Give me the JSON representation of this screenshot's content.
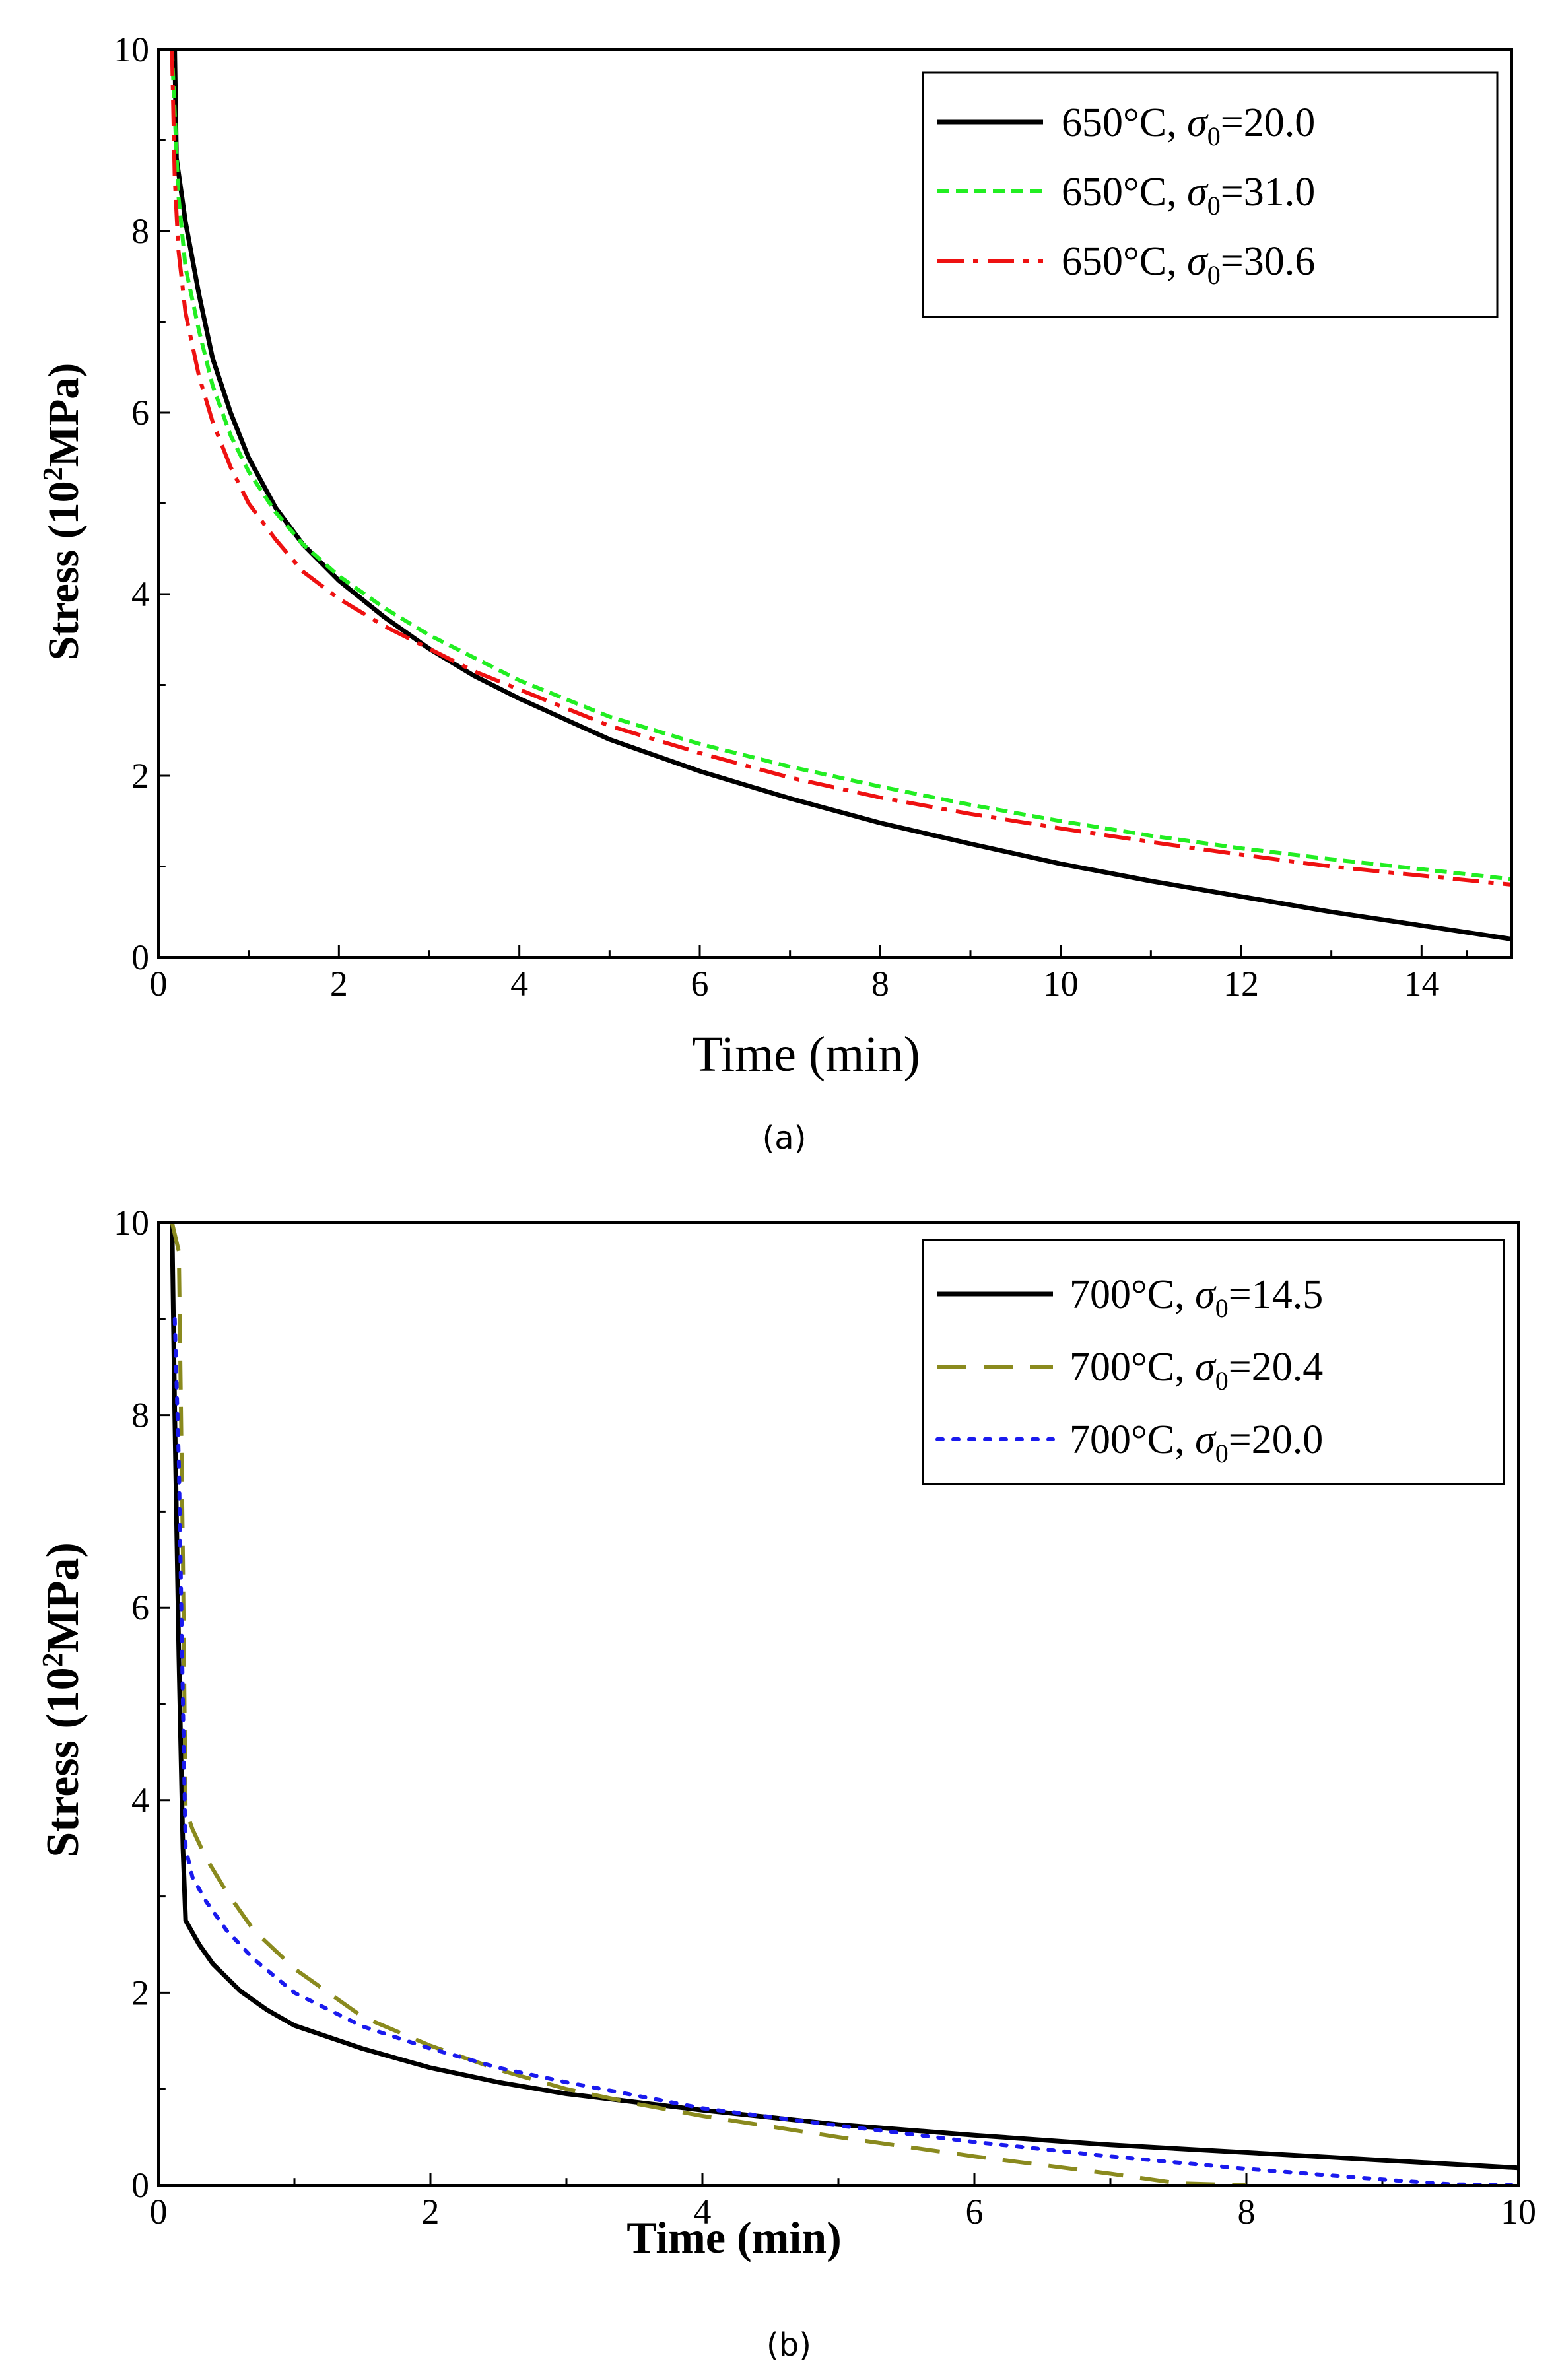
{
  "chart_data": [
    {
      "type": "line",
      "panel_caption": "(a)",
      "xlabel": "Time (min)",
      "ylabel": "Stress (10",
      "ylabel_sup": "2",
      "ylabel_end": "MPa)",
      "xlim": [
        0,
        15
      ],
      "ylim": [
        0,
        10
      ],
      "xticks": [
        "0",
        "2",
        "4",
        "6",
        "8",
        "10",
        "12",
        "14"
      ],
      "xtick_values": [
        0,
        2,
        4,
        6,
        8,
        10,
        12,
        14
      ],
      "yticks": [
        "0",
        "2",
        "4",
        "6",
        "8",
        "10"
      ],
      "ytick_values": [
        0,
        2,
        4,
        6,
        8,
        10
      ],
      "legend_position": "top-right",
      "series": [
        {
          "name": "650°C, σ0=20.0",
          "legend_prefix": "650°C, ",
          "legend_sigma": "σ",
          "legend_sub": "0",
          "legend_value": "=20.0",
          "color": "#000000",
          "style": "solid",
          "x": [
            0.18,
            0.2,
            0.3,
            0.45,
            0.6,
            0.8,
            1.0,
            1.3,
            1.6,
            2.0,
            2.5,
            3.0,
            3.5,
            4.0,
            5.0,
            6.0,
            7.0,
            8.0,
            9.0,
            10.0,
            11.0,
            12.0,
            13.0,
            14.0,
            15.0
          ],
          "y": [
            10.0,
            8.8,
            8.1,
            7.3,
            6.6,
            6.0,
            5.5,
            4.95,
            4.55,
            4.15,
            3.75,
            3.4,
            3.1,
            2.85,
            2.4,
            2.05,
            1.75,
            1.48,
            1.25,
            1.03,
            0.84,
            0.67,
            0.5,
            0.35,
            0.2
          ]
        },
        {
          "name": "650°C, σ0=31.0",
          "legend_prefix": "650°C, ",
          "legend_sigma": "σ",
          "legend_sub": "0",
          "legend_value": "=31.0",
          "color": "#22ee22",
          "style": "dashed",
          "x": [
            0.15,
            0.18,
            0.22,
            0.3,
            0.45,
            0.6,
            0.8,
            1.0,
            1.3,
            1.6,
            2.0,
            2.5,
            3.0,
            3.5,
            4.0,
            5.0,
            6.0,
            7.0,
            8.0,
            9.0,
            10.0,
            11.0,
            12.0,
            13.0,
            14.0,
            15.0
          ],
          "y": [
            10.0,
            9.3,
            8.4,
            7.6,
            6.9,
            6.3,
            5.75,
            5.35,
            4.9,
            4.55,
            4.2,
            3.85,
            3.55,
            3.3,
            3.05,
            2.65,
            2.35,
            2.1,
            1.88,
            1.68,
            1.5,
            1.34,
            1.2,
            1.08,
            0.97,
            0.86
          ]
        },
        {
          "name": "650°C, σ0=30.6",
          "legend_prefix": "650°C, ",
          "legend_sigma": "σ",
          "legend_sub": "0",
          "legend_value": "=30.6",
          "color": "#ee1111",
          "style": "dashdot",
          "x": [
            0.15,
            0.18,
            0.22,
            0.3,
            0.45,
            0.6,
            0.8,
            1.0,
            1.3,
            1.6,
            2.0,
            2.5,
            3.0,
            3.5,
            4.0,
            5.0,
            6.0,
            7.0,
            8.0,
            9.0,
            10.0,
            11.0,
            12.0,
            13.0,
            14.0,
            15.0
          ],
          "y": [
            10.0,
            8.6,
            7.8,
            7.1,
            6.4,
            5.9,
            5.4,
            5.0,
            4.6,
            4.25,
            3.95,
            3.65,
            3.4,
            3.15,
            2.95,
            2.55,
            2.25,
            1.98,
            1.76,
            1.58,
            1.42,
            1.27,
            1.13,
            1.0,
            0.9,
            0.8
          ]
        }
      ]
    },
    {
      "type": "line",
      "panel_caption": "(b)",
      "xlabel": "Time (min)",
      "ylabel": "Stress (10",
      "ylabel_sup": "2",
      "ylabel_end": "MPa)",
      "xlim": [
        0,
        10
      ],
      "ylim": [
        0,
        10
      ],
      "xticks": [
        "0",
        "2",
        "4",
        "6",
        "8",
        "10"
      ],
      "xtick_values": [
        0,
        2,
        4,
        6,
        8,
        10
      ],
      "yticks": [
        "0",
        "2",
        "4",
        "6",
        "8",
        "10"
      ],
      "ytick_values": [
        0,
        2,
        4,
        6,
        8,
        10
      ],
      "legend_position": "top-right",
      "series": [
        {
          "name": "700°C, σ0=14.5",
          "legend_prefix": "700°C, ",
          "legend_sigma": "σ",
          "legend_sub": "0",
          "legend_value": "=14.5",
          "color": "#000000",
          "style": "solid",
          "x": [
            0.1,
            0.12,
            0.15,
            0.18,
            0.2,
            0.3,
            0.4,
            0.6,
            0.8,
            1.0,
            1.5,
            2.0,
            2.5,
            3.0,
            4.0,
            5.0,
            6.0,
            7.0,
            8.0,
            9.0,
            10.0
          ],
          "y": [
            10.0,
            8.0,
            5.5,
            3.5,
            2.75,
            2.5,
            2.3,
            2.02,
            1.82,
            1.66,
            1.42,
            1.22,
            1.07,
            0.95,
            0.78,
            0.63,
            0.52,
            0.42,
            0.34,
            0.26,
            0.18
          ]
        },
        {
          "name": "700°C, σ0=20.4",
          "legend_prefix": "700°C, ",
          "legend_sigma": "σ",
          "legend_sub": "0",
          "legend_value": "=20.4",
          "color": "#8a8a1e",
          "style": "longdash",
          "x": [
            0.1,
            0.15,
            0.18,
            0.2,
            0.25,
            0.35,
            0.5,
            0.7,
            1.0,
            1.5,
            2.0,
            2.5,
            3.0,
            3.5,
            4.0,
            5.0,
            6.0,
            7.0,
            7.5,
            8.0
          ],
          "y": [
            10.0,
            9.7,
            6.5,
            3.9,
            3.7,
            3.4,
            3.05,
            2.65,
            2.25,
            1.75,
            1.45,
            1.2,
            1.0,
            0.85,
            0.72,
            0.5,
            0.3,
            0.12,
            0.02,
            0.0
          ]
        },
        {
          "name": "700°C, σ0=20.0",
          "legend_prefix": "700°C, ",
          "legend_sigma": "σ",
          "legend_sub": "0",
          "legend_value": "=20.0",
          "color": "#1a1aee",
          "style": "dotted",
          "x": [
            0.12,
            0.15,
            0.18,
            0.2,
            0.25,
            0.35,
            0.5,
            0.7,
            1.0,
            1.5,
            2.0,
            2.5,
            3.0,
            4.0,
            5.0,
            6.0,
            7.0,
            8.0,
            9.0,
            9.5,
            10.0
          ],
          "y": [
            9.0,
            7.5,
            5.0,
            3.5,
            3.2,
            2.95,
            2.65,
            2.35,
            2.0,
            1.65,
            1.42,
            1.22,
            1.07,
            0.8,
            0.62,
            0.45,
            0.3,
            0.17,
            0.06,
            0.01,
            0.0
          ]
        }
      ]
    }
  ]
}
